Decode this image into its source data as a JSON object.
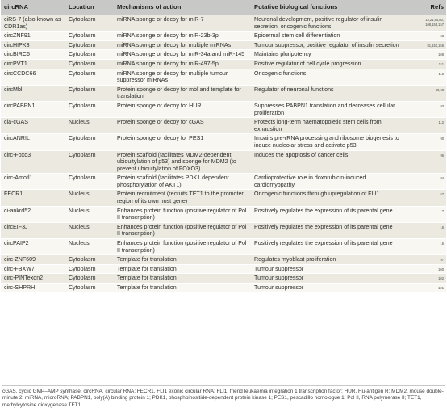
{
  "header": {
    "circrna": "circRNA",
    "location": "Location",
    "mechanism": "Mechanisms of action",
    "functions": "Putative biological functions",
    "refs": "Refs"
  },
  "rows": [
    {
      "circrna": "ciRS-7 (also known as CDR1as)",
      "location": "Cytoplasm",
      "mechanism": "miRNA sponge or decoy for miR-7",
      "functions": "Neuronal development, positive regulator of insulin secretion, oncogenic functions",
      "refs": "14,21,64,80, 108,155,157"
    },
    {
      "circrna": "circZNF91",
      "location": "Cytoplasm",
      "mechanism": "miRNA sponge or decoy for miR-23b-3p",
      "functions": "Epidermal stem cell differentiation",
      "refs": "53"
    },
    {
      "circrna": "circHIPK3",
      "location": "Cytoplasm",
      "mechanism": "miRNA sponge or decoy for multiple miRNAs",
      "functions": "Tumour suppressor, positive regulator of insulin secretion",
      "refs": "81,151,156"
    },
    {
      "circrna": "circBIRC6",
      "location": "Cytoplasm",
      "mechanism": "miRNA sponge or decoy for miR-34a and miR-145",
      "functions": "Maintains pluripotency",
      "refs": "108"
    },
    {
      "circrna": "circPVT1",
      "location": "Cytoplasm",
      "mechanism": "miRNA sponge or decoy for miR-497-5p",
      "functions": "Positive regulator of cell cycle progression",
      "refs": "111"
    },
    {
      "circrna": "circCCDC66",
      "location": "Cytoplasm",
      "mechanism": "miRNA sponge or decoy for multiple tumour suppressor miRNAs",
      "functions": "Oncogenic functions",
      "refs": "110"
    },
    {
      "circrna": "circMbl",
      "location": "Cytoplasm",
      "mechanism": "Protein sponge or decoy for mbl and template for translation",
      "functions": "Regulator of neuronal functions",
      "refs": "39,58"
    },
    {
      "circrna": "circPABPN1",
      "location": "Cytoplasm",
      "mechanism": "Protein sponge or decoy for HUR",
      "functions": "Suppresses PABPN1 translation and decreases cellular proliferation",
      "refs": "93"
    },
    {
      "circrna": "cia-cGAS",
      "location": "Nucleus",
      "mechanism": "Protein sponge or decoy for cGAS",
      "functions": "Protects long-term haematopoietic stem cells from exhaustion",
      "refs": "112"
    },
    {
      "circrna": "circANRIL",
      "location": "Cytoplasm",
      "mechanism": "Protein sponge or decoy for PES1",
      "functions": "Impairs pre-rRNA processing and ribosome biogenesis to induce nucleolar stress and activate p53",
      "refs": "90"
    },
    {
      "circrna": "circ-Foxo3",
      "location": "Cytoplasm",
      "mechanism": "Protein scaffold (facilitates MDM2-dependent ubiquitylation of p53) and sponge for MDM2 (to prevent ubiquitylation of FOXO3)",
      "functions": "Induces the apoptosis of cancer cells",
      "refs": "96"
    },
    {
      "circrna": "circ-Amotl1",
      "location": "Cytoplasm",
      "mechanism": "Protein scaffold (facilitates PDK1 dependent phosphorylation of AKT1)",
      "functions": "Cardioprotective role in doxorubicin-induced cardiomyopathy",
      "refs": "94"
    },
    {
      "circrna": "FECR1",
      "location": "Nucleus",
      "mechanism": "Protein recruitment (recruits TET1 to the promoter region of its own host gene)",
      "functions": "Oncogenic functions through upregulation of FLI1",
      "refs": "57"
    },
    {
      "circrna": "ci-ankrd52",
      "location": "Nucleus",
      "mechanism": "Enhances protein function (positive regulator of Pol II transcription)",
      "functions": "Positively regulates the expression of its parental gene",
      "refs": "17"
    },
    {
      "circrna": "circEIF3J",
      "location": "Nucleus",
      "mechanism": "Enhances protein function (positive regulator of Pol II transcription)",
      "functions": "Positively regulates the expression of its parental gene",
      "refs": "16"
    },
    {
      "circrna": "circPAIP2",
      "location": "Nucleus",
      "mechanism": "Enhances protein function (positive regulator of Pol II transcription)",
      "functions": "Positively regulates the expression of its parental gene",
      "refs": "16"
    },
    {
      "circrna": "circ-ZNF609",
      "location": "Cytoplasm",
      "mechanism": "Template for translation",
      "functions": "Regulates myoblast proliferation",
      "refs": "97"
    },
    {
      "circrna": "circ-FBXW7",
      "location": "Cytoplasm",
      "mechanism": "Template for translation",
      "functions": "Tumour suppressor",
      "refs": "100"
    },
    {
      "circrna": "circ-PINTexon2",
      "location": "Cytoplasm",
      "mechanism": "Template for translation",
      "functions": "Tumour suppressor",
      "refs": "102"
    },
    {
      "circrna": "circ-SHPRH",
      "location": "Cytoplasm",
      "mechanism": "Template for translation",
      "functions": "Tumour suppressor",
      "refs": "101"
    }
  ],
  "footnote": "cGAS, cyclic GMP–AMP synthase; circRNA, circular RNA; FECR1, FLI1 exonic circular RNA; FLI1, friend leukaemia integration 1 transcription factor; HUR, Hu-antigen R; MDM2, mouse double-minute 2; miRNA, microRNA; PABPN1, poly(A) binding protein 1; PDK1, phosphoinositide-dependent protein kinase 1; PES1, pescadillo homologue 1; Pol II, RNA polymerase II; TET1, methylcytosine dioxygenase TET1."
}
